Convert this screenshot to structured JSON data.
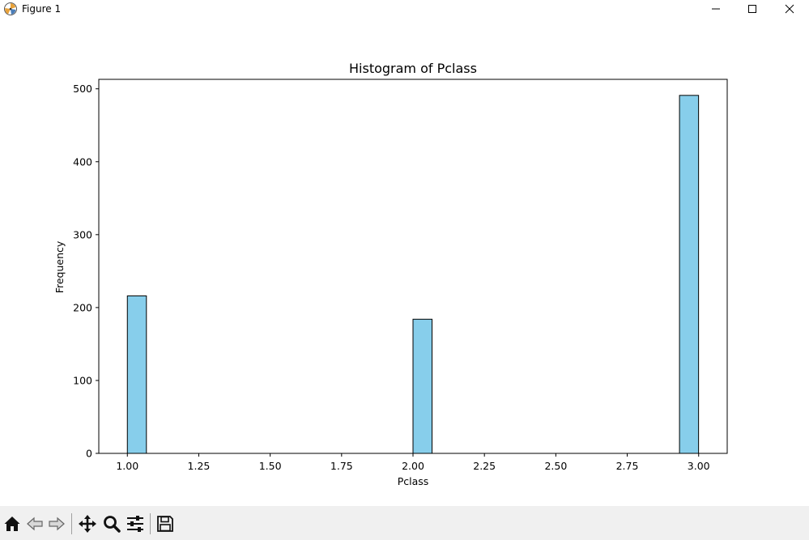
{
  "window": {
    "title": "Figure 1",
    "icons": [
      "app-icon",
      "minimize-icon",
      "maximize-icon",
      "close-icon"
    ]
  },
  "toolbar": {
    "tools": [
      "home-icon",
      "back-icon",
      "forward-icon",
      "pan-icon",
      "zoom-icon",
      "configure-subplots-icon",
      "save-icon"
    ]
  },
  "chart_data": {
    "type": "bar",
    "title": "Histogram of Pclass",
    "xlabel": "Pclass",
    "ylabel": "Frequency",
    "xlim": [
      0.9,
      3.1
    ],
    "ylim": [
      0,
      513
    ],
    "xticks": [
      "1.00",
      "1.25",
      "1.50",
      "1.75",
      "2.00",
      "2.25",
      "2.50",
      "2.75",
      "3.00"
    ],
    "yticks": [
      "0",
      "100",
      "200",
      "300",
      "400",
      "500"
    ],
    "bin_width": 0.0667,
    "bars": [
      {
        "x_start": 1.0,
        "value": 216
      },
      {
        "x_start": 2.0,
        "value": 184
      },
      {
        "x_start": 2.933,
        "value": 491
      }
    ],
    "bar_color": "#87ceeb",
    "edge_color": "#000000",
    "grid": false
  }
}
